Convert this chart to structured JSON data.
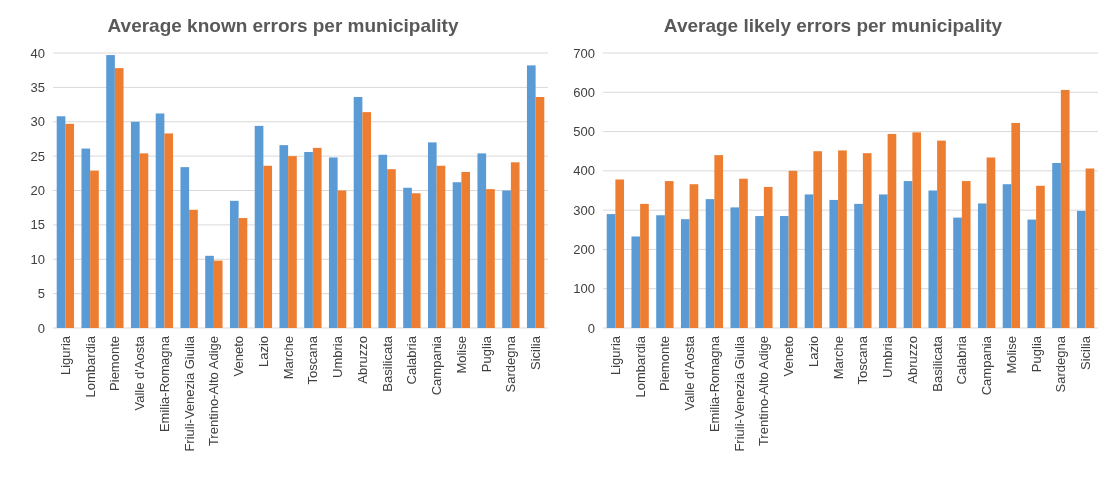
{
  "chart_data": [
    {
      "type": "bar",
      "title": "Average known errors per municipality",
      "categories": [
        "Liguria",
        "Lombardia",
        "Piemonte",
        "Valle d'Aosta",
        "Emilia-Romagna",
        "Friuli-Venezia Giulia",
        "Trentino-Alto Adige",
        "Veneto",
        "Lazio",
        "Marche",
        "Toscana",
        "Umbria",
        "Abruzzo",
        "Basilicata",
        "Calabria",
        "Campania",
        "Molise",
        "Puglia",
        "Sardegna",
        "Sicilia"
      ],
      "series": [
        {
          "color": "#5b9bd5",
          "values": [
            30.8,
            26.1,
            39.7,
            30,
            31.2,
            23.4,
            10.5,
            18.5,
            29.4,
            26.6,
            25.6,
            24.8,
            33.6,
            25.2,
            20.4,
            27,
            21.2,
            25.4,
            20,
            38.2
          ]
        },
        {
          "color": "#ed7d31",
          "values": [
            29.7,
            22.9,
            37.8,
            25.4,
            28.3,
            17.2,
            9.8,
            16,
            23.6,
            25,
            26.2,
            20,
            31.4,
            23.1,
            19.6,
            23.6,
            22.7,
            20.2,
            24.1,
            33.6
          ]
        }
      ],
      "ylim": [
        0,
        40
      ],
      "yticks": [
        0,
        5,
        10,
        15,
        20,
        25,
        30,
        35,
        40
      ],
      "grid": "y"
    },
    {
      "type": "bar",
      "title": "Average likely errors per municipality",
      "categories": [
        "Liguria",
        "Lombardia",
        "Piemonte",
        "Valle d'Aosta",
        "Emilia-Romagna",
        "Friuli-Venezia Giulia",
        "Trentino-Alto Adige",
        "Veneto",
        "Lazio",
        "Marche",
        "Toscana",
        "Umbria",
        "Abruzzo",
        "Basilicata",
        "Calabria",
        "Campania",
        "Molise",
        "Puglia",
        "Sardegna",
        "Sicilia"
      ],
      "series": [
        {
          "color": "#5b9bd5",
          "values": [
            290,
            233,
            287,
            277,
            328,
            307,
            285,
            285,
            340,
            326,
            316,
            340,
            374,
            350,
            281,
            317,
            366,
            276,
            420,
            298
          ]
        },
        {
          "color": "#ed7d31",
          "values": [
            378,
            316,
            374,
            366,
            440,
            380,
            359,
            400,
            450,
            452,
            445,
            494,
            498,
            477,
            374,
            434,
            522,
            362,
            606,
            406
          ]
        }
      ],
      "ylim": [
        0,
        700
      ],
      "yticks": [
        0,
        100,
        200,
        300,
        400,
        500,
        600,
        700
      ],
      "grid": "y"
    }
  ]
}
